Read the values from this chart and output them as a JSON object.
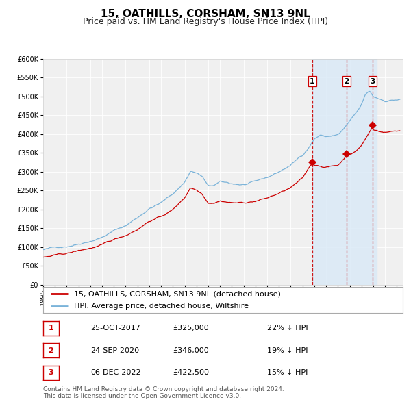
{
  "title": "15, OATHILLS, CORSHAM, SN13 9NL",
  "subtitle": "Price paid vs. HM Land Registry's House Price Index (HPI)",
  "ylim": [
    0,
    600000
  ],
  "yticks": [
    0,
    50000,
    100000,
    150000,
    200000,
    250000,
    300000,
    350000,
    400000,
    450000,
    500000,
    550000,
    600000
  ],
  "xlim_start": 1995.0,
  "xlim_end": 2025.5,
  "hpi_color": "#7ab3d9",
  "price_color": "#cc0000",
  "marker_color": "#cc0000",
  "bg_color": "#f0f0f0",
  "grid_color": "#ffffff",
  "highlight_color": "#daeaf7",
  "vline_color": "#cc0000",
  "sale1_date": 2017.82,
  "sale1_price": 325000,
  "sale2_date": 2020.73,
  "sale2_price": 346000,
  "sale3_date": 2022.93,
  "sale3_price": 422500,
  "legend_price_label": "15, OATHILLS, CORSHAM, SN13 9NL (detached house)",
  "legend_hpi_label": "HPI: Average price, detached house, Wiltshire",
  "table_rows": [
    {
      "num": "1",
      "date": "25-OCT-2017",
      "price": "£325,000",
      "pct": "22% ↓ HPI"
    },
    {
      "num": "2",
      "date": "24-SEP-2020",
      "price": "£346,000",
      "pct": "19% ↓ HPI"
    },
    {
      "num": "3",
      "date": "06-DEC-2022",
      "price": "£422,500",
      "pct": "15% ↓ HPI"
    }
  ],
  "footer": "Contains HM Land Registry data © Crown copyright and database right 2024.\nThis data is licensed under the Open Government Licence v3.0.",
  "title_fontsize": 11,
  "subtitle_fontsize": 9,
  "tick_fontsize": 7,
  "legend_fontsize": 8,
  "table_fontsize": 8,
  "footer_fontsize": 6.5
}
